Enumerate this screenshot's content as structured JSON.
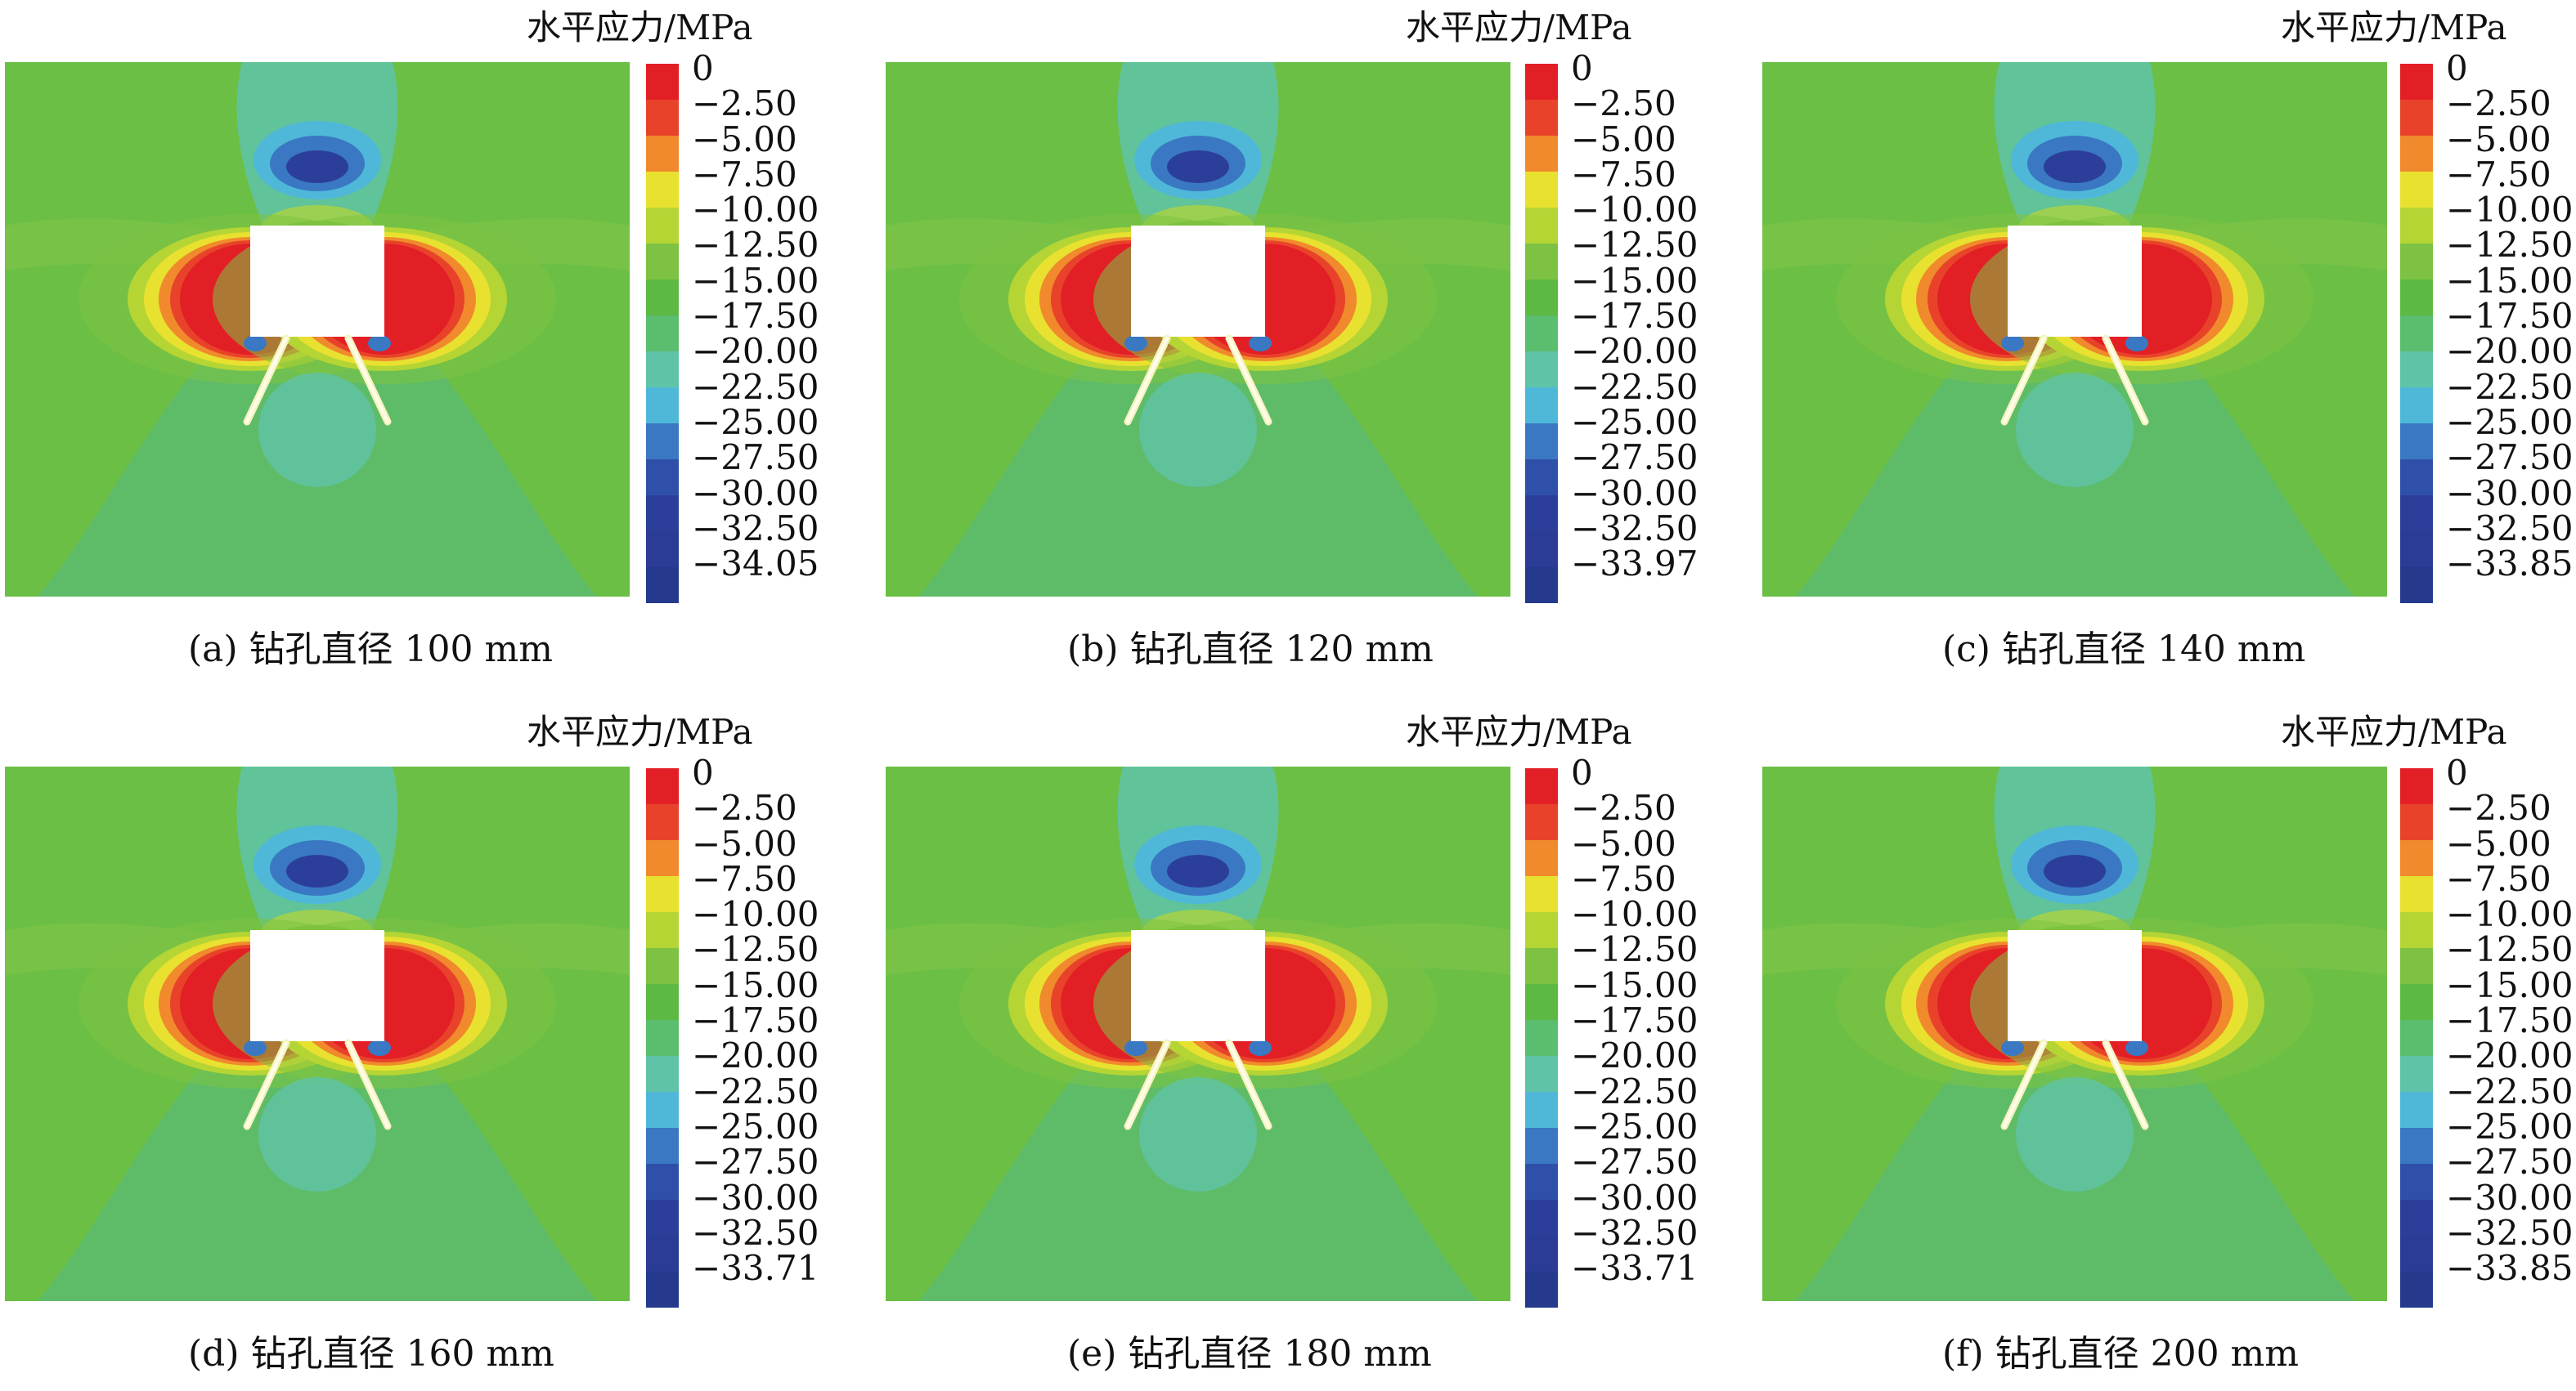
{
  "legend_unit": "水平应力/MPa",
  "colors": [
    "#e31f26",
    "#e8432a",
    "#f08a2c",
    "#e8e12f",
    "#b5d534",
    "#7dc242",
    "#5cb944",
    "#5bbd6e",
    "#5fc3a8",
    "#4fb8d8",
    "#3a78c3",
    "#2f50a8",
    "#2b3f9a",
    "#2a3c96",
    "#253a8d"
  ],
  "panels": [
    {
      "caption": "(a) 钻孔直径 100 mm",
      "ticks": [
        "0",
        "−2.50",
        "−5.00",
        "−7.50",
        "−10.00",
        "−12.50",
        "−15.00",
        "−17.50",
        "−20.00",
        "−22.50",
        "−25.00",
        "−27.50",
        "−30.00",
        "−32.50",
        "−34.05"
      ]
    },
    {
      "caption": "(b) 钻孔直径 120 mm",
      "ticks": [
        "0",
        "−2.50",
        "−5.00",
        "−7.50",
        "−10.00",
        "−12.50",
        "−15.00",
        "−17.50",
        "−20.00",
        "−22.50",
        "−25.00",
        "−27.50",
        "−30.00",
        "−32.50",
        "−33.97"
      ]
    },
    {
      "caption": "(c) 钻孔直径 140 mm",
      "ticks": [
        "0",
        "−2.50",
        "−5.00",
        "−7.50",
        "−10.00",
        "−12.50",
        "−15.00",
        "−17.50",
        "−20.00",
        "−22.50",
        "−25.00",
        "−27.50",
        "−30.00",
        "−32.50",
        "−33.85"
      ]
    },
    {
      "caption": "(d) 钻孔直径 160 mm",
      "ticks": [
        "0",
        "−2.50",
        "−5.00",
        "−7.50",
        "−10.00",
        "−12.50",
        "−15.00",
        "−17.50",
        "−20.00",
        "−22.50",
        "−25.00",
        "−27.50",
        "−30.00",
        "−32.50",
        "−33.71"
      ]
    },
    {
      "caption": "(e) 钻孔直径 180 mm",
      "ticks": [
        "0",
        "−2.50",
        "−5.00",
        "−7.50",
        "−10.00",
        "−12.50",
        "−15.00",
        "−17.50",
        "−20.00",
        "−22.50",
        "−25.00",
        "−27.50",
        "−30.00",
        "−32.50",
        "−33.71"
      ]
    },
    {
      "caption": "(f) 钻孔直径 200 mm",
      "ticks": [
        "0",
        "−2.50",
        "−5.00",
        "−7.50",
        "−10.00",
        "−12.50",
        "−15.00",
        "−17.50",
        "−20.00",
        "−22.50",
        "−25.00",
        "−27.50",
        "−30.00",
        "−32.50",
        "−33.85"
      ]
    }
  ]
}
